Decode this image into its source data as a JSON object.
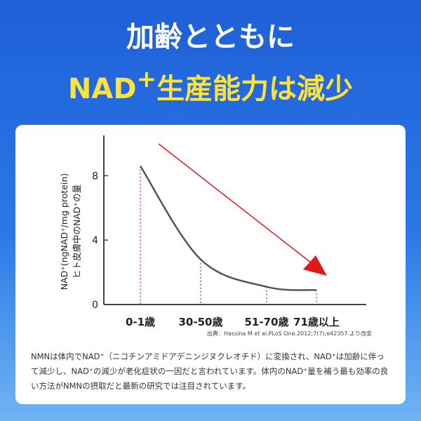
{
  "header": {
    "line1": "加齢とともに",
    "line2": [
      "NAD",
      "+",
      "生産能力は減少"
    ]
  },
  "chart_data": {
    "type": "line",
    "y_label": [
      "NAD⁺(ngNAD⁺/mg protein)",
      "ヒト皮膚中のNAD⁺の量"
    ],
    "categories": [
      "0-1歳",
      "30-50歳",
      "51-70歳",
      "71歳以上"
    ],
    "values": [
      8.6,
      2.8,
      1.1,
      0.9
    ],
    "color": "#555555",
    "ylim": [
      0,
      10.5
    ],
    "yticks": [
      0,
      4,
      8
    ],
    "source": "出典：Hassina M et al.PLoS One.2012;7(7);e42357.より改変"
  },
  "description": "NMNは体内でNAD⁺（ニコチンアミドアデニンジヌクレオチド）に変換され、NAD⁺は加齢に伴って減少し、NAD⁺の減少が老化症状の一因だと言われています。体内のNAD⁺量を補う最も効率の良い方法がNMNの摂取だと最新の研究では注目されています。"
}
